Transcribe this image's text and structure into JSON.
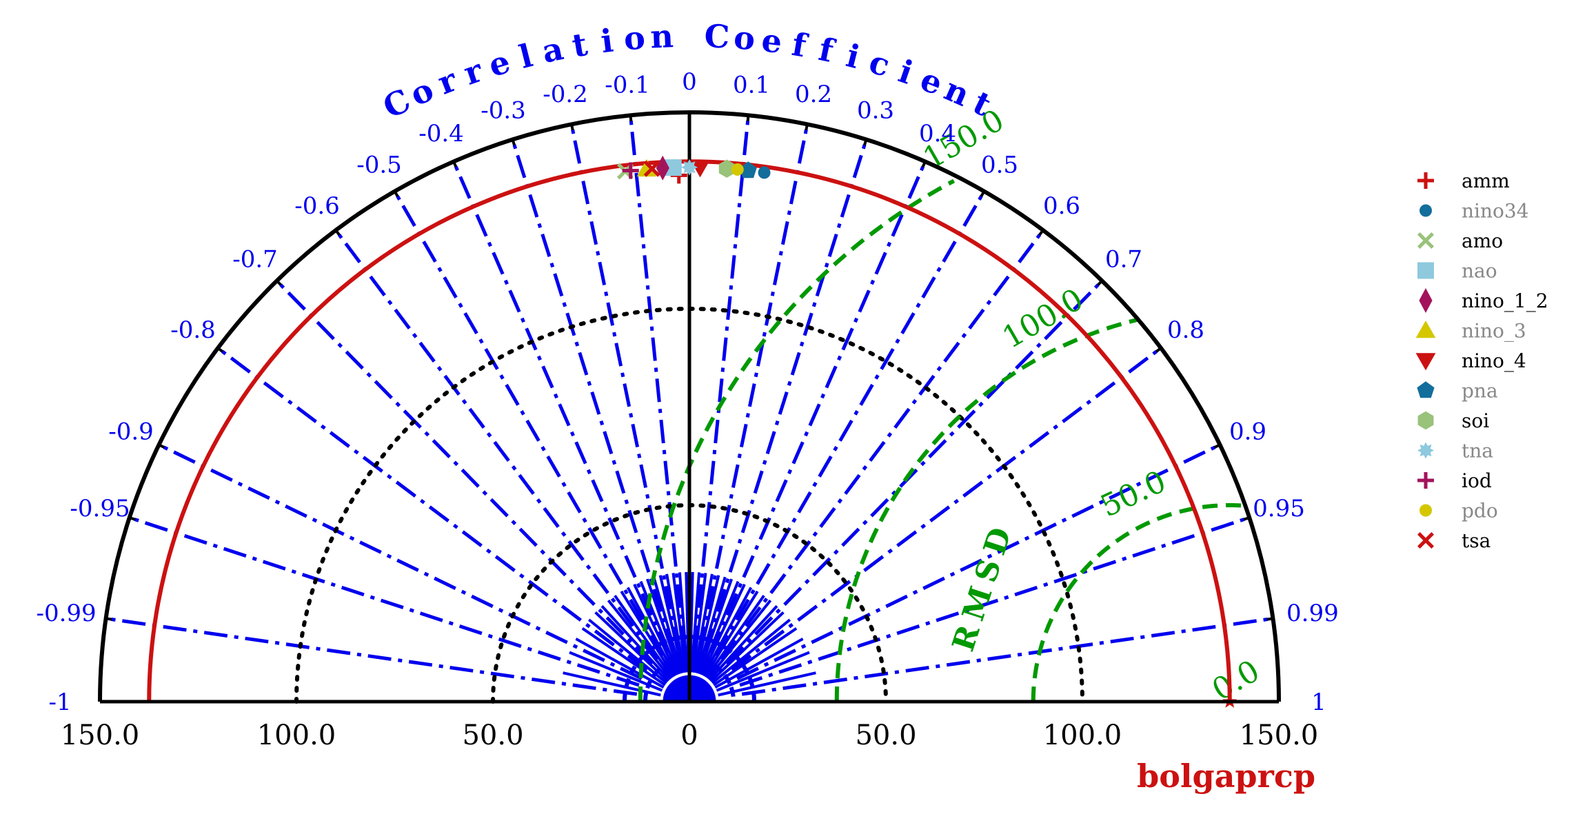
{
  "chart_data": {
    "type": "taylor",
    "title": "Correlation Coefficient",
    "xlabel": "bolgaprcp",
    "reference": {
      "name": "bolgaprcp",
      "std": 137.5
    },
    "std_ticks": [
      "150.0",
      "100.0",
      "50.0",
      "0",
      "50.0",
      "100.0",
      "150.0"
    ],
    "std_range": [
      -150,
      150
    ],
    "std_circles": [
      50,
      100
    ],
    "corr_ticks": [
      "-1",
      "-0.99",
      "-0.95",
      "-0.9",
      "-0.8",
      "-0.7",
      "-0.6",
      "-0.5",
      "-0.4",
      "-0.3",
      "-0.2",
      "-0.1",
      "0",
      "0.1",
      "0.2",
      "0.3",
      "0.4",
      "0.5",
      "0.6",
      "0.7",
      "0.8",
      "0.9",
      "0.95",
      "0.99",
      "1"
    ],
    "rmsd_label": "RMSD",
    "rmsd_levels": [
      {
        "value": 0,
        "label": "0.0"
      },
      {
        "value": 50,
        "label": "50.0"
      },
      {
        "value": 100,
        "label": "100.0"
      },
      {
        "value": 150,
        "label": "150.0"
      }
    ],
    "series": [
      {
        "name": "amm",
        "corr": -0.02,
        "std": 134,
        "marker": "plus",
        "color": "#cc1111"
      },
      {
        "name": "nino34",
        "corr": 0.14,
        "std": 136,
        "marker": "circle",
        "color": "#136e9b"
      },
      {
        "name": "amo",
        "corr": -0.12,
        "std": 136,
        "marker": "x",
        "color": "#99c27a"
      },
      {
        "name": "nao",
        "corr": -0.03,
        "std": 136,
        "marker": "square",
        "color": "#8ec9de"
      },
      {
        "name": "nino_1_2",
        "corr": -0.05,
        "std": 136,
        "marker": "diamond",
        "color": "#a3135c"
      },
      {
        "name": "nino_3",
        "corr": -0.08,
        "std": 136,
        "marker": "triangle",
        "color": "#d4c700"
      },
      {
        "name": "nino_4",
        "corr": 0.02,
        "std": 136,
        "marker": "tri-down",
        "color": "#cc1111"
      },
      {
        "name": "pna",
        "corr": 0.11,
        "std": 136,
        "marker": "pentagon",
        "color": "#136e9b"
      },
      {
        "name": "soi",
        "corr": 0.07,
        "std": 136,
        "marker": "hexagon",
        "color": "#99c27a"
      },
      {
        "name": "tna",
        "corr": 0.0,
        "std": 136,
        "marker": "star",
        "color": "#8ec9de"
      },
      {
        "name": "iod",
        "corr": -0.11,
        "std": 136,
        "marker": "plus",
        "color": "#a3135c"
      },
      {
        "name": "pdo",
        "corr": 0.09,
        "std": 136,
        "marker": "circle",
        "color": "#d4c700"
      },
      {
        "name": "tsa",
        "corr": -0.07,
        "std": 136,
        "marker": "x",
        "color": "#cc1111"
      }
    ],
    "legend": {
      "placement": "right",
      "entries": [
        {
          "name": "amm",
          "text_color": "#000000"
        },
        {
          "name": "nino34",
          "text_color": "#888888"
        },
        {
          "name": "amo",
          "text_color": "#000000"
        },
        {
          "name": "nao",
          "text_color": "#888888"
        },
        {
          "name": "nino_1_2",
          "text_color": "#000000"
        },
        {
          "name": "nino_3",
          "text_color": "#888888"
        },
        {
          "name": "nino_4",
          "text_color": "#000000"
        },
        {
          "name": "pna",
          "text_color": "#888888"
        },
        {
          "name": "soi",
          "text_color": "#000000"
        },
        {
          "name": "tna",
          "text_color": "#888888"
        },
        {
          "name": "iod",
          "text_color": "#000000"
        },
        {
          "name": "pdo",
          "text_color": "#888888"
        },
        {
          "name": "tsa",
          "text_color": "#000000"
        }
      ]
    },
    "colors": {
      "axis": "#000000",
      "corr_lines": "#0000ee",
      "reference_arc": "#cc1111",
      "std_circles": "#000000",
      "rmsd": "#009900",
      "xlabel": "#cc1111"
    }
  }
}
